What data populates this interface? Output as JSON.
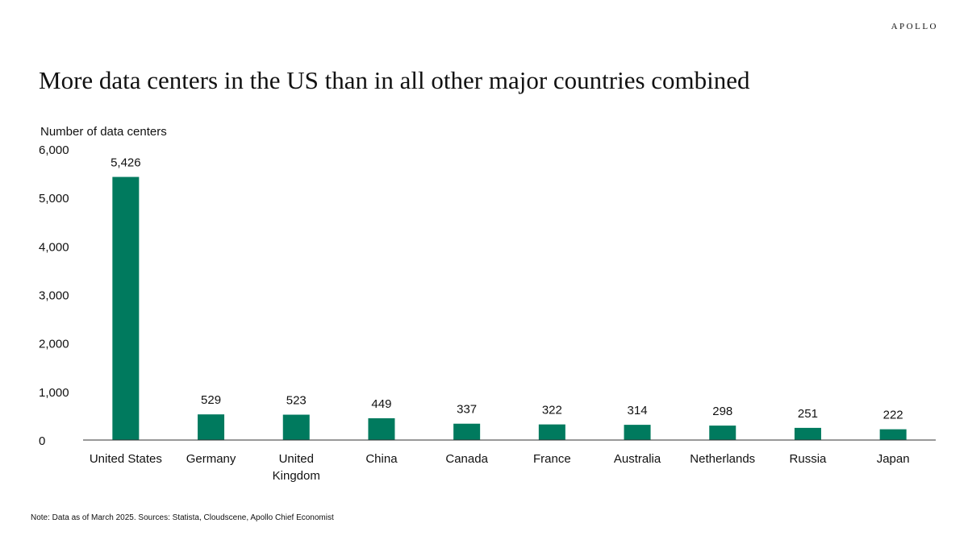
{
  "header": {
    "brand": "APOLLO",
    "title": "More data centers in the US than in all other major countries combined"
  },
  "chart_data": {
    "type": "bar",
    "ylabel": "Number of data centers",
    "xlabel": "",
    "ylim": [
      0,
      6000
    ],
    "yticks": [
      0,
      1000,
      2000,
      3000,
      4000,
      5000,
      6000
    ],
    "ytick_labels": [
      "0",
      "1,000",
      "2,000",
      "3,000",
      "4,000",
      "5,000",
      "6,000"
    ],
    "categories": [
      "United States",
      "Germany",
      "United Kingdom",
      "China",
      "Canada",
      "France",
      "Australia",
      "Netherlands",
      "Russia",
      "Japan"
    ],
    "category_lines": [
      [
        "United States"
      ],
      [
        "Germany"
      ],
      [
        "United",
        "Kingdom"
      ],
      [
        "China"
      ],
      [
        "Canada"
      ],
      [
        "France"
      ],
      [
        "Australia"
      ],
      [
        "Netherlands"
      ],
      [
        "Russia"
      ],
      [
        "Japan"
      ]
    ],
    "values": [
      5426,
      529,
      523,
      449,
      337,
      322,
      314,
      298,
      251,
      222
    ],
    "value_labels": [
      "5,426",
      "529",
      "523",
      "449",
      "337",
      "322",
      "314",
      "298",
      "251",
      "222"
    ],
    "bar_color": "#007a5e",
    "grid": false,
    "legend": "none"
  },
  "footer": {
    "note": "Note: Data as of March 2025. Sources: Statista, Cloudscene, Apollo Chief Economist"
  }
}
